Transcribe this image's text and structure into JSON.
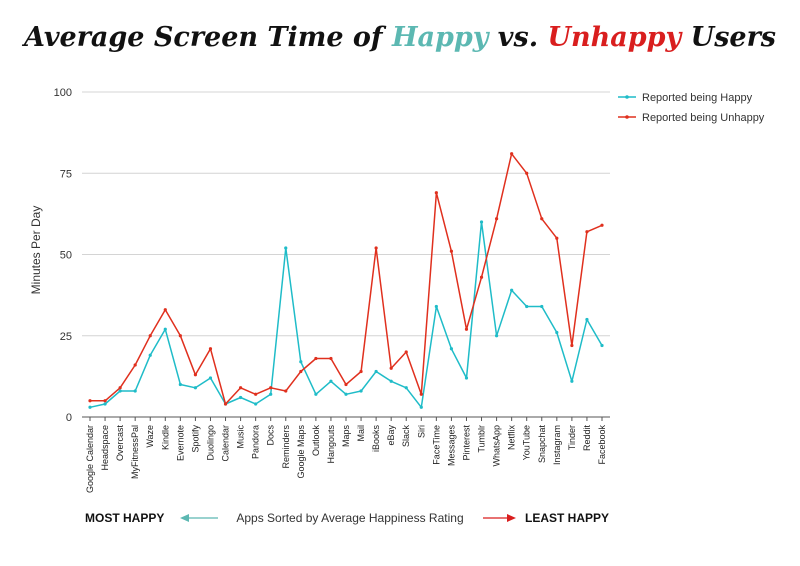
{
  "chart_data": {
    "type": "line",
    "title": {
      "prefix": "Average Screen Time of ",
      "happy_word": "Happy",
      "middle": " vs. ",
      "unhappy_word": "Unhappy",
      "suffix": " Users"
    },
    "ylabel": "Minutes Per Day",
    "ylim": [
      0,
      100
    ],
    "yticks": [
      "0",
      "25",
      "50",
      "75",
      "100"
    ],
    "categories": [
      "Google Calendar",
      "Headspace",
      "Overcast",
      "MyFitnessPal",
      "Waze",
      "Kindle",
      "Evernote",
      "Spotify",
      "Duolingo",
      "Calendar",
      "Music",
      "Pandora",
      "Docs",
      "Reminders",
      "Google Maps",
      "Outlook",
      "Hangouts",
      "Maps",
      "Mail",
      "iBooks",
      "eBay",
      "Slack",
      "Siri",
      "FaceTime",
      "Messages",
      "Pinterest",
      "Tumblr",
      "WhatsApp",
      "Netflix",
      "YouTube",
      "Snapchat",
      "Instagram",
      "Tinder",
      "Reddit",
      "Facebook"
    ],
    "series": [
      {
        "name": "Reported being Happy",
        "color": "#1fbcc8",
        "values": [
          3,
          4,
          8,
          8,
          19,
          27,
          10,
          9,
          12,
          4,
          6,
          4,
          7,
          52,
          17,
          7,
          11,
          7,
          8,
          14,
          11,
          9,
          3,
          34,
          21,
          12,
          60,
          25,
          39,
          34,
          34,
          26,
          11,
          30,
          22
        ]
      },
      {
        "name": "Reported being Unhappy",
        "color": "#e0301e",
        "values": [
          5,
          5,
          9,
          16,
          25,
          33,
          25,
          13,
          21,
          4,
          9,
          7,
          9,
          8,
          14,
          18,
          18,
          10,
          14,
          52,
          15,
          20,
          7,
          69,
          51,
          27,
          43,
          61,
          81,
          75,
          61,
          55,
          22,
          57,
          59
        ]
      }
    ],
    "xlabel": {
      "left": "MOST HAPPY",
      "center": "Apps Sorted by Average Happiness Rating",
      "right": "LEAST HAPPY"
    },
    "colors": {
      "happy": "#5cb8b2",
      "unhappy": "#d91e1e",
      "grid": "#d4d4d4"
    }
  }
}
